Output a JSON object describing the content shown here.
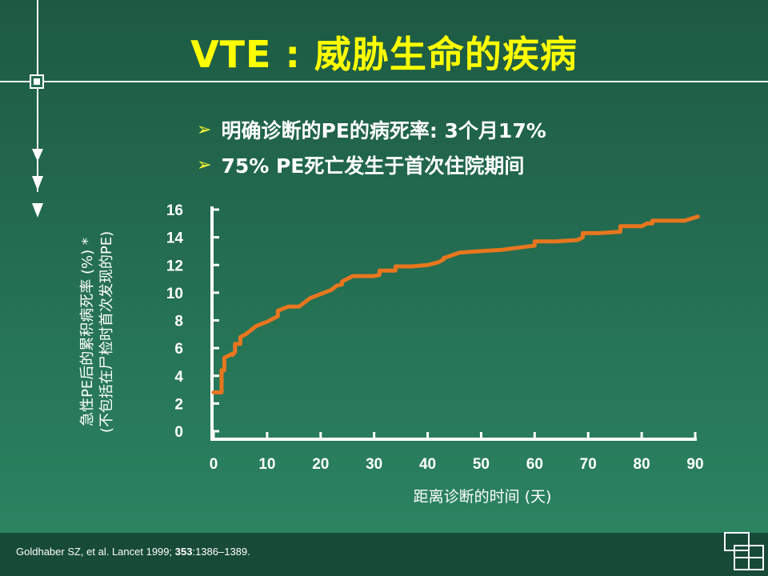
{
  "slide": {
    "title": "VTE : 威胁生命的疾病",
    "bullets": [
      "明确诊断的PE的病死率: 3个月17%",
      "75% PE死亡发生于首次住院期间"
    ],
    "citation": {
      "authors": "Goldhaber SZ, et al. Lancet 1999; ",
      "volume": "353",
      "pages": ":1386–1389."
    }
  },
  "colors": {
    "background": "#236b50",
    "title": "#ffff00",
    "line": "#e8761f",
    "footer": "#174a37"
  },
  "chart_data": {
    "type": "line",
    "title": "",
    "xlabel": "距离诊断的时间 (天)",
    "ylabel_line1": "急性PE后的累积病死率 (%) *",
    "ylabel_line2": "(不包括在尸检时首次发现的PE)",
    "xlim": [
      0,
      90
    ],
    "ylim": [
      0,
      16
    ],
    "x_ticks": [
      0,
      10,
      20,
      30,
      40,
      50,
      60,
      70,
      80,
      90
    ],
    "y_ticks": [
      0,
      2,
      4,
      6,
      8,
      10,
      12,
      14,
      16
    ],
    "grid": false,
    "series": [
      {
        "x": [
          0,
          1.5,
          1.5,
          2,
          2,
          3.5,
          3.5,
          4,
          4,
          5,
          5,
          6,
          6,
          8,
          10,
          12,
          12,
          14,
          16,
          18,
          22,
          23,
          24,
          24,
          26,
          30,
          31,
          31,
          34,
          34,
          37,
          40,
          42,
          43,
          43,
          46,
          50,
          54,
          58,
          60,
          60,
          64,
          68,
          69,
          69,
          72,
          76,
          76,
          80,
          81,
          82,
          82,
          85,
          88,
          90.5
        ],
        "y": [
          2.8,
          2.8,
          4.4,
          4.4,
          5.3,
          5.6,
          5.5,
          5.7,
          6.3,
          6.3,
          6.8,
          7.0,
          7.0,
          7.6,
          7.9,
          8.3,
          8.7,
          9.0,
          9.0,
          9.6,
          10.2,
          10.5,
          10.6,
          10.8,
          11.2,
          11.2,
          11.3,
          11.6,
          11.6,
          11.9,
          11.9,
          12.0,
          12.2,
          12.4,
          12.5,
          12.9,
          13.0,
          13.1,
          13.3,
          13.4,
          13.7,
          13.7,
          13.8,
          14.0,
          14.3,
          14.3,
          14.4,
          14.8,
          14.8,
          15.0,
          15.0,
          15.2,
          15.2,
          15.2,
          15.5
        ]
      }
    ]
  }
}
